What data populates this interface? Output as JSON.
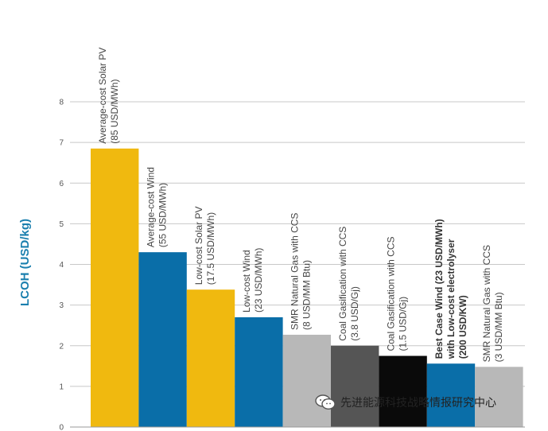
{
  "chart_data": {
    "type": "bar",
    "title": "",
    "xlabel": "",
    "ylabel": "LCOH (USD/kg)",
    "ylim": [
      0,
      8
    ],
    "yticks": [
      "0",
      "1",
      "2",
      "3",
      "4",
      "5",
      "6",
      "7",
      "8"
    ],
    "grid": true,
    "bars": [
      {
        "lines": [
          "Average-cost Solar PV",
          "(85 USD/MWh)"
        ],
        "value": 6.85,
        "color": "#f0b90f",
        "bold": false
      },
      {
        "lines": [
          "Average-cost Wind",
          "(55 USD/MWh)"
        ],
        "value": 4.3,
        "color": "#0a6ea8",
        "bold": false
      },
      {
        "lines": [
          "Low-cost Solar PV",
          "(17.5 USD/MWh)"
        ],
        "value": 3.38,
        "color": "#f0b90f",
        "bold": false
      },
      {
        "lines": [
          "Low-cost Wind",
          "(23 USD/MWh)"
        ],
        "value": 2.7,
        "color": "#0a6ea8",
        "bold": false
      },
      {
        "lines": [
          "SMR Natural Gas with CCS",
          "(8 USD/MM Btu)"
        ],
        "value": 2.27,
        "color": "#b8b8b8",
        "bold": false
      },
      {
        "lines": [
          "Coal Gasification with CCS",
          "(3.8 USD/Gj)"
        ],
        "value": 2.0,
        "color": "#555555",
        "bold": false
      },
      {
        "lines": [
          "Coal Gasification with CCS",
          "(1.5 USD/Gj)"
        ],
        "value": 1.75,
        "color": "#0a0a0a",
        "bold": false
      },
      {
        "lines": [
          "Best Case Wind (23 USD/MWh)",
          "with Low-cost electrolyser",
          "(200 USD/KW)"
        ],
        "value": 1.56,
        "color": "#0a6ea8",
        "bold": true
      },
      {
        "lines": [
          "SMR Natural Gas with CCS",
          "(3 USD/MM Btu)"
        ],
        "value": 1.48,
        "color": "#b8b8b8",
        "bold": false
      }
    ]
  },
  "watermark": {
    "text": "先进能源科技战略情报研究中心",
    "icon": "wechat-icon"
  }
}
